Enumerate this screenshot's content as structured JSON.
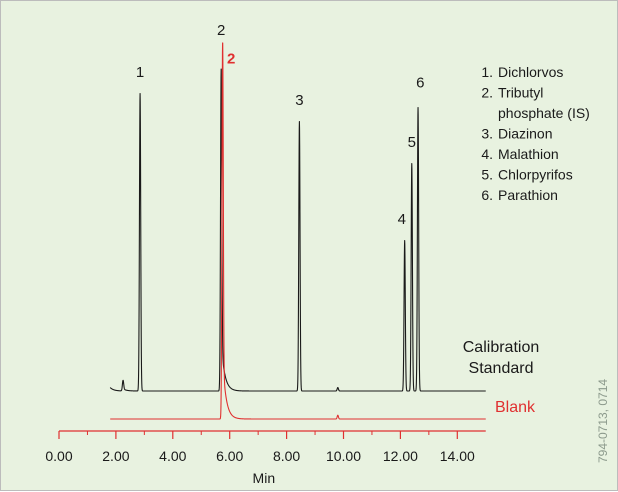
{
  "chart_data": {
    "type": "line",
    "title": "",
    "xlabel": "Min",
    "ylabel": "",
    "xlim": [
      0,
      15
    ],
    "ylim": [
      0,
      100
    ],
    "grid": false,
    "x_ticks": [
      "0.00",
      "2.00",
      "4.00",
      "6.00",
      "8.00",
      "10.00",
      "12.00",
      "14.00"
    ],
    "x_tick_values": [
      0,
      2,
      4,
      6,
      8,
      10,
      12,
      14
    ],
    "series": [
      {
        "name": "Calibration Standard",
        "name_lines": [
          "Calibration",
          "Standard"
        ],
        "color": "#1a1a1a",
        "baseline_min": 1.8,
        "baseline_max": 15.0,
        "baseline_level": 0,
        "peaks": [
          {
            "x": 1.7,
            "height": 24,
            "tail": 2.3
          },
          {
            "x": 2.25,
            "height": 3,
            "tail": 0.6
          },
          {
            "x": 2.85,
            "height": 85,
            "tail": 0
          },
          {
            "x": 5.7,
            "height": 92,
            "tail": 14
          },
          {
            "x": 8.45,
            "height": 77,
            "tail": 0
          },
          {
            "x": 9.8,
            "height": 1,
            "tail": 0
          },
          {
            "x": 12.15,
            "height": 43,
            "tail": 0
          },
          {
            "x": 12.4,
            "height": 65,
            "tail": 0
          },
          {
            "x": 12.62,
            "height": 81,
            "tail": 0
          }
        ]
      },
      {
        "name": "Blank",
        "name_lines": [
          "Blank"
        ],
        "color": "#e03030",
        "baseline_min": 1.8,
        "baseline_max": 15.0,
        "baseline_level": 0,
        "peaks": [
          {
            "x": 1.7,
            "height": 19,
            "tail": 0
          },
          {
            "x": 5.75,
            "height": 100,
            "tail": 16
          },
          {
            "x": 9.8,
            "height": 1,
            "tail": 0
          }
        ]
      }
    ],
    "peak_labels": [
      {
        "label": "1",
        "x": 2.85,
        "height": 88
      },
      {
        "label": "2",
        "x": 5.7,
        "height": 100
      },
      {
        "label": "2",
        "x": 6.05,
        "height": 93,
        "series": "Blank"
      },
      {
        "label": "3",
        "x": 8.45,
        "height": 80
      },
      {
        "label": "4",
        "x": 12.05,
        "height": 46
      },
      {
        "label": "5",
        "x": 12.4,
        "height": 68
      },
      {
        "label": "6",
        "x": 12.7,
        "height": 85
      }
    ],
    "legend": {
      "placement": "top-right",
      "items": [
        {
          "num": "1.",
          "lines": [
            "Dichlorvos"
          ]
        },
        {
          "num": "2.",
          "lines": [
            "Tributyl",
            "phosphate (IS)"
          ]
        },
        {
          "num": "3.",
          "lines": [
            "Diazinon"
          ]
        },
        {
          "num": "4.",
          "lines": [
            "Malathion"
          ]
        },
        {
          "num": "5.",
          "lines": [
            "Chlorpyrifos"
          ]
        },
        {
          "num": "6.",
          "lines": [
            "Parathion"
          ]
        }
      ]
    }
  },
  "catalog_number": "794-0713, 0714",
  "colors": {
    "background": "#e8f2e0",
    "axis": "#e03030",
    "text": "#1a1a1a",
    "blank": "#e03030"
  }
}
